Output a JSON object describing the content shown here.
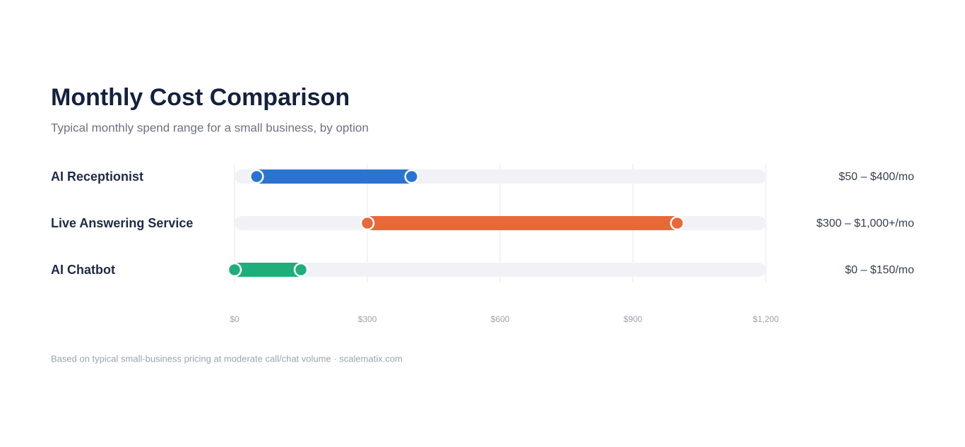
{
  "chart_data": {
    "type": "range",
    "title": "Monthly Cost Comparison",
    "subtitle": "Typical monthly spend range for a small business, by option",
    "categories": [
      "AI Receptionist",
      "Live Answering Service",
      "AI Chatbot"
    ],
    "low": [
      50,
      300,
      0
    ],
    "high": [
      400,
      1000,
      150
    ],
    "colors": [
      "#2a74cf",
      "#e8683a",
      "#1fae7a"
    ],
    "value_labels": [
      "$50 – $400/mo",
      "$300 – $1,000+/mo",
      "$0 – $150/mo"
    ],
    "xlim": [
      0,
      1200
    ],
    "xticks": [
      {
        "value": 0,
        "label": "$0"
      },
      {
        "value": 300,
        "label": "$300"
      },
      {
        "value": 600,
        "label": "$600"
      },
      {
        "value": 900,
        "label": "$900"
      },
      {
        "value": 1200,
        "label": "$1,200"
      }
    ],
    "grid": true,
    "footnote": "Based on typical small-business pricing at moderate call/chat volume · scalematix.com"
  }
}
